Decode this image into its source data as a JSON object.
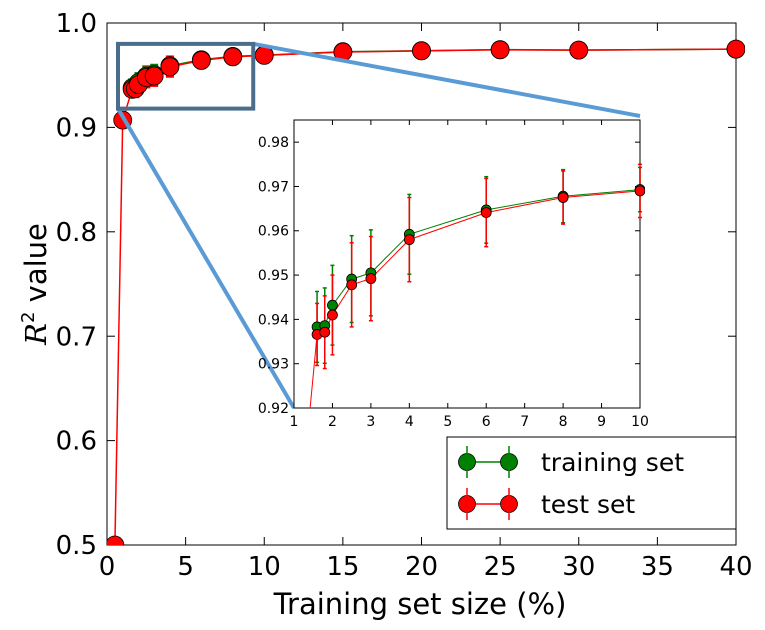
{
  "chart_data": [
    {
      "type": "line",
      "title": "",
      "xlabel": "Training set size (%)",
      "ylabel_main": "R",
      "ylabel_sup": "2",
      "ylabel_rest": " value",
      "xlim": [
        0,
        40
      ],
      "ylim": [
        0.5,
        1.0
      ],
      "x_ticks": [
        0,
        5,
        10,
        15,
        20,
        25,
        30,
        35,
        40
      ],
      "y_ticks": [
        "0.5",
        "0.6",
        "0.7",
        "0.8",
        "0.9",
        "1.0"
      ],
      "legend": "lower-right",
      "series": [
        {
          "name": "training set",
          "color": "#008000",
          "x": [
            1.6,
            1.8,
            2,
            2.5,
            3,
            4,
            6,
            8,
            10,
            15,
            20,
            25,
            30,
            40
          ],
          "y": [
            0.938,
            0.9385,
            0.943,
            0.949,
            0.9505,
            0.959,
            0.9648,
            0.968,
            0.9693,
            0.9725,
            0.9735,
            0.9745,
            0.974,
            0.975
          ],
          "err": [
            0.008,
            0.0085,
            0.009,
            0.0095,
            0.0095,
            0.009,
            0.0075,
            0.006,
            0.005,
            0.004,
            0.004,
            0.003,
            0.003,
            0.003
          ]
        },
        {
          "name": "test set",
          "color": "#ff0000",
          "x": [
            0.5,
            1,
            1.6,
            1.8,
            2,
            2.5,
            3,
            4,
            6,
            8,
            10,
            15,
            20,
            25,
            30,
            40
          ],
          "y": [
            0.5,
            0.907,
            0.9365,
            0.937,
            0.941,
            0.9478,
            0.9492,
            0.958,
            0.9641,
            0.9676,
            0.969,
            0.9722,
            0.9733,
            0.9743,
            0.974,
            0.975
          ],
          "err": [
            0,
            0,
            0.007,
            0.008,
            0.009,
            0.0095,
            0.0095,
            0.0095,
            0.0075,
            0.006,
            0.006,
            0.004,
            0.004,
            0.003,
            0.003,
            0.003
          ]
        }
      ],
      "zoom_box": {
        "x": [
          0.7,
          9.3
        ],
        "y": [
          0.918,
          0.98
        ]
      },
      "box_color": "#4a6d8c",
      "connector_color": "#5b9bd5"
    },
    {
      "type": "line",
      "title": "",
      "inset": true,
      "xlim": [
        1,
        10
      ],
      "ylim": [
        0.92,
        0.985
      ],
      "x_ticks": [
        1,
        2,
        3,
        4,
        5,
        6,
        7,
        8,
        9,
        10
      ],
      "y_ticks": [
        "0.92",
        "0.93",
        "0.94",
        "0.95",
        "0.96",
        "0.97",
        "0.98"
      ],
      "series": [
        {
          "name": "training set",
          "color": "#008000",
          "x": [
            1.6,
            1.8,
            2,
            2.5,
            3,
            4,
            6,
            8,
            10
          ],
          "y": [
            0.9383,
            0.9386,
            0.9432,
            0.9491,
            0.9505,
            0.9592,
            0.9647,
            0.9678,
            0.9693
          ],
          "err": [
            0.008,
            0.0085,
            0.009,
            0.0098,
            0.0097,
            0.009,
            0.0075,
            0.006,
            0.005
          ]
        },
        {
          "name": "test set",
          "color": "#ff0000",
          "x": [
            1.2,
            1.6,
            1.8,
            2,
            2.5,
            3,
            4,
            6,
            8,
            10
          ],
          "y": [
            0.9,
            0.9366,
            0.9371,
            0.941,
            0.9478,
            0.9492,
            0.958,
            0.9641,
            0.9675,
            0.969
          ],
          "err": [
            0,
            0.007,
            0.0082,
            0.009,
            0.0095,
            0.0095,
            0.0095,
            0.0077,
            0.006,
            0.006
          ]
        }
      ]
    }
  ]
}
